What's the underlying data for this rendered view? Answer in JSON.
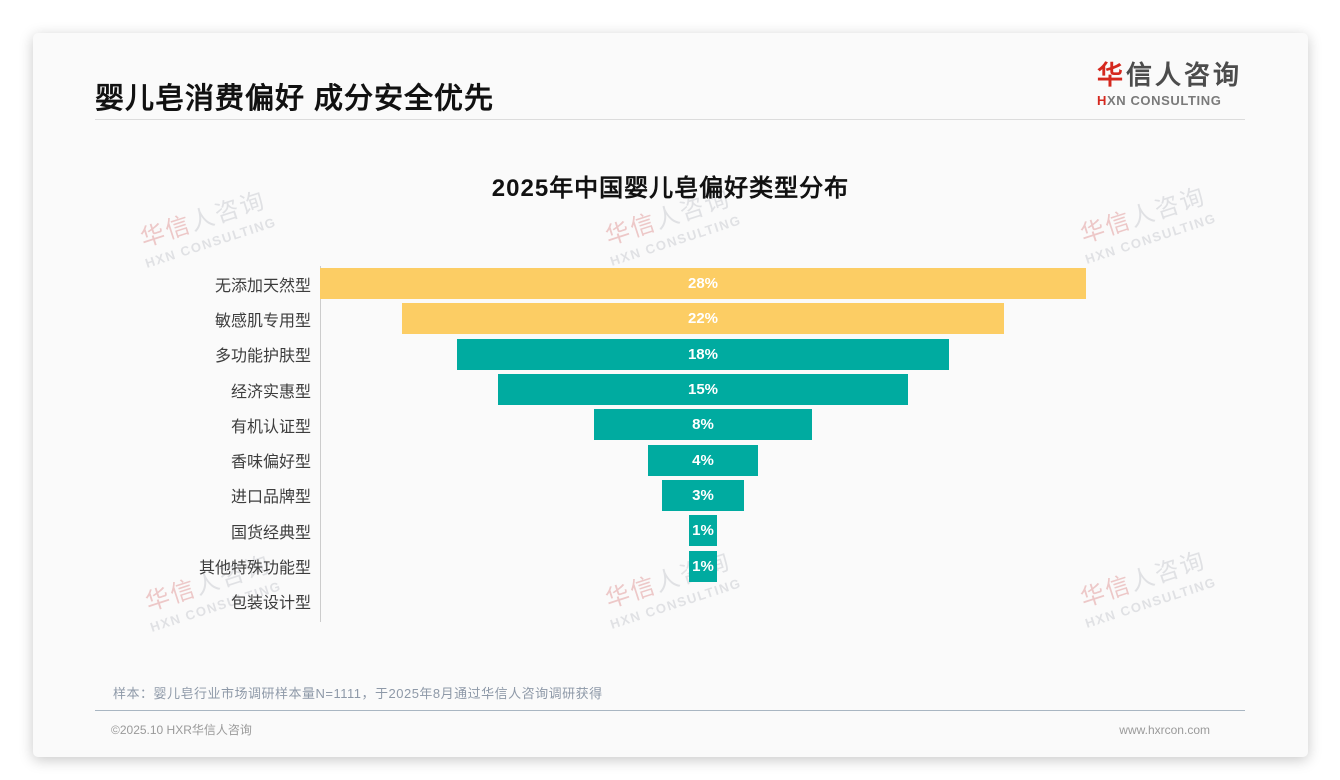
{
  "page": {
    "header": {
      "title": "婴儿皂消费偏好 成分安全优先"
    },
    "logo": {
      "brand_red": "华",
      "brand_rest": "信人咨询",
      "sub_red": "H",
      "sub_rest": "XN CONSULTING"
    },
    "watermark": {
      "brand_red": "华信",
      "brand_gray": "人咨询",
      "line2": "HXN CONSULTING"
    },
    "note": "样本：婴儿皂行业市场调研样本量N=1111，于2025年8月通过华信人咨询调研获得",
    "footer": {
      "copyright": "©2025.10 HXR华信人咨询",
      "website": "www.hxrcon.com"
    }
  },
  "chart_data": {
    "type": "bar",
    "variant": "horizontal-centered-funnel",
    "title": "2025年中国婴儿皂偏好类型分布",
    "categories": [
      "无添加天然型",
      "敏感肌专用型",
      "多功能护肤型",
      "经济实惠型",
      "有机认证型",
      "香味偏好型",
      "进口品牌型",
      "国货经典型",
      "其他特殊功能型",
      "包装设计型"
    ],
    "values": [
      28,
      22,
      18,
      15,
      8,
      4,
      3,
      1,
      1,
      0
    ],
    "data_labels": [
      "28%",
      "22%",
      "18%",
      "15%",
      "8%",
      "4%",
      "3%",
      "1%",
      "1%",
      ""
    ],
    "bar_colors": [
      "#FCCD64",
      "#FCCD64",
      "#00ABA0",
      "#00ABA0",
      "#00ABA0",
      "#00ABA0",
      "#00ABA0",
      "#00ABA0",
      "#00ABA0",
      "#00ABA0"
    ],
    "value_label_color": "#ffffff",
    "xlim": [
      0,
      28
    ],
    "xlabel": "",
    "ylabel": "",
    "grid": false,
    "legend": false
  }
}
